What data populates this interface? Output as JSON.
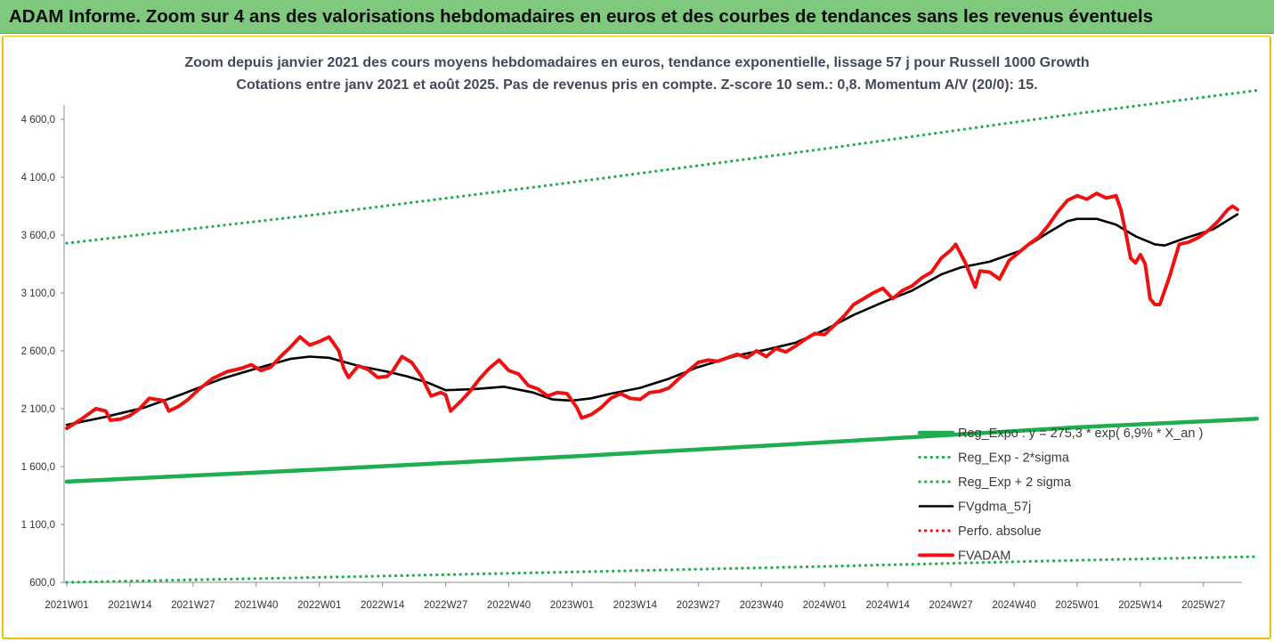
{
  "banner": {
    "title": "ADAM Informe. Zoom sur 4 ans des valorisations hebdomadaires en euros et des courbes de tendances sans les revenus éventuels"
  },
  "colors": {
    "banner_bg": "#7fc97f",
    "frame_border": "#f0c000",
    "regression": "#1fae4f",
    "fvadam": "#ee1111",
    "fvgdma": "#000000",
    "perfo": "#ee1111"
  },
  "chart_data": {
    "type": "line",
    "title": "Zoom depuis janvier 2021 des cours moyens hebdomadaires en euros, tendance exponentielle, lissage 57 j pour Russell 1000 Growth",
    "subtitle": "Cotations entre janv 2021 et août 2025.  Pas de revenus pris en compte. Z-score 10 sem.: 0,8. Momentum A/V (20/0): 15.",
    "xlabel": "",
    "ylabel": "",
    "ylim": [
      600,
      4800
    ],
    "xlim": [
      0,
      241
    ],
    "grid": false,
    "legend_position": "bottom-right",
    "y_ticks": [
      {
        "value": 600,
        "label": "600,0"
      },
      {
        "value": 1100,
        "label": "1 100,0"
      },
      {
        "value": 1600,
        "label": "1 600,0"
      },
      {
        "value": 2100,
        "label": "2 100,0"
      },
      {
        "value": 2600,
        "label": "2 600,0"
      },
      {
        "value": 3100,
        "label": "3 100,0"
      },
      {
        "value": 3600,
        "label": "3 600,0"
      },
      {
        "value": 4100,
        "label": "4 100,0"
      },
      {
        "value": 4600,
        "label": "4 600,0"
      }
    ],
    "x_ticks": [
      {
        "index": 0,
        "label": "2021W01"
      },
      {
        "index": 13,
        "label": "2021W14"
      },
      {
        "index": 26,
        "label": "2021W27"
      },
      {
        "index": 39,
        "label": "2021W40"
      },
      {
        "index": 52,
        "label": "2022W01"
      },
      {
        "index": 65,
        "label": "2022W14"
      },
      {
        "index": 78,
        "label": "2022W27"
      },
      {
        "index": 91,
        "label": "2022W40"
      },
      {
        "index": 104,
        "label": "2023W01"
      },
      {
        "index": 117,
        "label": "2023W14"
      },
      {
        "index": 130,
        "label": "2023W27"
      },
      {
        "index": 143,
        "label": "2023W40"
      },
      {
        "index": 156,
        "label": "2024W01"
      },
      {
        "index": 169,
        "label": "2024W14"
      },
      {
        "index": 182,
        "label": "2024W27"
      },
      {
        "index": 195,
        "label": "2024W40"
      },
      {
        "index": 208,
        "label": "2025W01"
      },
      {
        "index": 221,
        "label": "2025W14"
      },
      {
        "index": 234,
        "label": "2025W27"
      }
    ],
    "series": [
      {
        "name": "Reg_Expo : y = 275,3 * exp( 6,9% * X_an )",
        "style": "solid-thick",
        "color": "#1fae4f",
        "points": [
          [
            0,
            1470
          ],
          [
            52,
            1575
          ],
          [
            104,
            1688
          ],
          [
            156,
            1809
          ],
          [
            208,
            1939
          ],
          [
            245,
            2013
          ]
        ]
      },
      {
        "name": "Reg_Exp - 2*sigma",
        "style": "dotted",
        "color": "#1fae4f",
        "points": [
          [
            0,
            600
          ],
          [
            52,
            643
          ],
          [
            104,
            689
          ],
          [
            156,
            738
          ],
          [
            208,
            791
          ],
          [
            245,
            822
          ]
        ]
      },
      {
        "name": "Reg_Exp + 2 sigma",
        "style": "dotted",
        "color": "#1fae4f",
        "points": [
          [
            0,
            3530
          ],
          [
            52,
            3780
          ],
          [
            104,
            4055
          ],
          [
            156,
            4345
          ],
          [
            208,
            4650
          ],
          [
            245,
            4850
          ]
        ]
      },
      {
        "name": "FVgdma_57j",
        "style": "solid",
        "color": "#000000",
        "points": [
          [
            0,
            1960
          ],
          [
            8,
            2030
          ],
          [
            16,
            2110
          ],
          [
            24,
            2230
          ],
          [
            32,
            2360
          ],
          [
            40,
            2460
          ],
          [
            46,
            2530
          ],
          [
            50,
            2550
          ],
          [
            54,
            2540
          ],
          [
            60,
            2470
          ],
          [
            66,
            2420
          ],
          [
            70,
            2380
          ],
          [
            74,
            2330
          ],
          [
            78,
            2260
          ],
          [
            84,
            2270
          ],
          [
            90,
            2290
          ],
          [
            96,
            2240
          ],
          [
            100,
            2180
          ],
          [
            104,
            2170
          ],
          [
            108,
            2190
          ],
          [
            112,
            2230
          ],
          [
            118,
            2280
          ],
          [
            124,
            2360
          ],
          [
            130,
            2460
          ],
          [
            138,
            2560
          ],
          [
            144,
            2610
          ],
          [
            150,
            2670
          ],
          [
            156,
            2780
          ],
          [
            162,
            2910
          ],
          [
            168,
            3020
          ],
          [
            174,
            3120
          ],
          [
            180,
            3260
          ],
          [
            184,
            3320
          ],
          [
            190,
            3370
          ],
          [
            196,
            3460
          ],
          [
            202,
            3620
          ],
          [
            206,
            3720
          ],
          [
            208,
            3740
          ],
          [
            212,
            3740
          ],
          [
            216,
            3690
          ],
          [
            220,
            3590
          ],
          [
            224,
            3520
          ],
          [
            226,
            3510
          ],
          [
            230,
            3570
          ],
          [
            236,
            3650
          ],
          [
            241,
            3780
          ]
        ]
      },
      {
        "name": "Perfo. absolue",
        "style": "dotted",
        "color": "#ee1111",
        "points": []
      },
      {
        "name": "FVADAM",
        "style": "solid-thick",
        "color": "#ee1111",
        "points": [
          [
            0,
            1930
          ],
          [
            3,
            2010
          ],
          [
            6,
            2100
          ],
          [
            8,
            2080
          ],
          [
            9,
            2000
          ],
          [
            11,
            2010
          ],
          [
            13,
            2040
          ],
          [
            15,
            2100
          ],
          [
            17,
            2190
          ],
          [
            20,
            2170
          ],
          [
            21,
            2080
          ],
          [
            23,
            2120
          ],
          [
            25,
            2180
          ],
          [
            27,
            2260
          ],
          [
            30,
            2360
          ],
          [
            33,
            2420
          ],
          [
            36,
            2450
          ],
          [
            38,
            2480
          ],
          [
            40,
            2430
          ],
          [
            42,
            2460
          ],
          [
            44,
            2550
          ],
          [
            46,
            2630
          ],
          [
            48,
            2720
          ],
          [
            50,
            2650
          ],
          [
            52,
            2680
          ],
          [
            54,
            2720
          ],
          [
            56,
            2600
          ],
          [
            57,
            2450
          ],
          [
            58,
            2370
          ],
          [
            60,
            2470
          ],
          [
            62,
            2440
          ],
          [
            64,
            2370
          ],
          [
            66,
            2380
          ],
          [
            67,
            2420
          ],
          [
            69,
            2550
          ],
          [
            71,
            2500
          ],
          [
            73,
            2380
          ],
          [
            75,
            2210
          ],
          [
            77,
            2240
          ],
          [
            78,
            2220
          ],
          [
            79,
            2080
          ],
          [
            81,
            2160
          ],
          [
            83,
            2250
          ],
          [
            85,
            2360
          ],
          [
            87,
            2450
          ],
          [
            89,
            2520
          ],
          [
            91,
            2430
          ],
          [
            93,
            2400
          ],
          [
            95,
            2300
          ],
          [
            97,
            2270
          ],
          [
            99,
            2210
          ],
          [
            101,
            2240
          ],
          [
            103,
            2230
          ],
          [
            105,
            2110
          ],
          [
            106,
            2020
          ],
          [
            108,
            2050
          ],
          [
            110,
            2110
          ],
          [
            112,
            2190
          ],
          [
            114,
            2230
          ],
          [
            116,
            2190
          ],
          [
            118,
            2180
          ],
          [
            120,
            2240
          ],
          [
            122,
            2250
          ],
          [
            124,
            2280
          ],
          [
            126,
            2360
          ],
          [
            128,
            2430
          ],
          [
            130,
            2500
          ],
          [
            132,
            2520
          ],
          [
            134,
            2510
          ],
          [
            136,
            2540
          ],
          [
            138,
            2570
          ],
          [
            140,
            2540
          ],
          [
            142,
            2600
          ],
          [
            144,
            2550
          ],
          [
            146,
            2620
          ],
          [
            148,
            2590
          ],
          [
            150,
            2640
          ],
          [
            152,
            2700
          ],
          [
            154,
            2750
          ],
          [
            156,
            2740
          ],
          [
            158,
            2820
          ],
          [
            160,
            2900
          ],
          [
            162,
            3000
          ],
          [
            164,
            3050
          ],
          [
            166,
            3100
          ],
          [
            168,
            3140
          ],
          [
            170,
            3050
          ],
          [
            172,
            3120
          ],
          [
            174,
            3160
          ],
          [
            176,
            3230
          ],
          [
            178,
            3280
          ],
          [
            180,
            3400
          ],
          [
            182,
            3470
          ],
          [
            183,
            3520
          ],
          [
            185,
            3360
          ],
          [
            187,
            3150
          ],
          [
            188,
            3290
          ],
          [
            190,
            3280
          ],
          [
            192,
            3220
          ],
          [
            194,
            3380
          ],
          [
            196,
            3450
          ],
          [
            198,
            3520
          ],
          [
            200,
            3580
          ],
          [
            202,
            3680
          ],
          [
            204,
            3800
          ],
          [
            206,
            3900
          ],
          [
            208,
            3940
          ],
          [
            210,
            3910
          ],
          [
            212,
            3960
          ],
          [
            214,
            3920
          ],
          [
            216,
            3940
          ],
          [
            217,
            3820
          ],
          [
            218,
            3620
          ],
          [
            219,
            3400
          ],
          [
            220,
            3360
          ],
          [
            221,
            3430
          ],
          [
            222,
            3350
          ],
          [
            223,
            3050
          ],
          [
            224,
            3000
          ],
          [
            225,
            3000
          ],
          [
            227,
            3240
          ],
          [
            229,
            3520
          ],
          [
            231,
            3540
          ],
          [
            233,
            3580
          ],
          [
            235,
            3640
          ],
          [
            237,
            3720
          ],
          [
            239,
            3820
          ],
          [
            240,
            3850
          ],
          [
            241,
            3820
          ]
        ]
      }
    ]
  }
}
